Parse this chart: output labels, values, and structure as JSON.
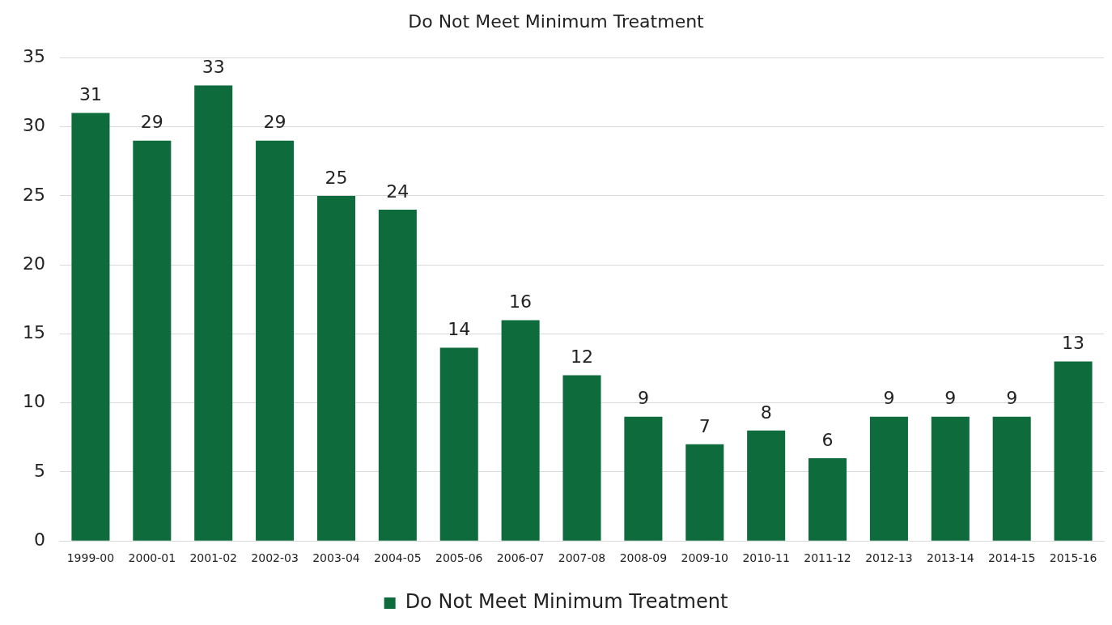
{
  "chart_data": {
    "type": "bar",
    "title": "Do Not Meet Minimum Treatment",
    "categories": [
      "1999-00",
      "2000-01",
      "2001-02",
      "2002-03",
      "2003-04",
      "2004-05",
      "2005-06",
      "2006-07",
      "2007-08",
      "2008-09",
      "2009-10",
      "2010-11",
      "2011-12",
      "2012-13",
      "2013-14",
      "2014-15",
      "2015-16"
    ],
    "series": [
      {
        "name": "Do Not Meet Minimum Treatment",
        "color": "#0e6b3c",
        "values": [
          31,
          29,
          33,
          29,
          25,
          24,
          14,
          16,
          12,
          9,
          7,
          8,
          6,
          9,
          9,
          9,
          13
        ]
      }
    ],
    "ylim": [
      0,
      35
    ],
    "yticks": [
      0,
      5,
      10,
      15,
      20,
      25,
      30,
      35
    ],
    "grid": "y",
    "legend": "bottom",
    "data_labels": true
  }
}
